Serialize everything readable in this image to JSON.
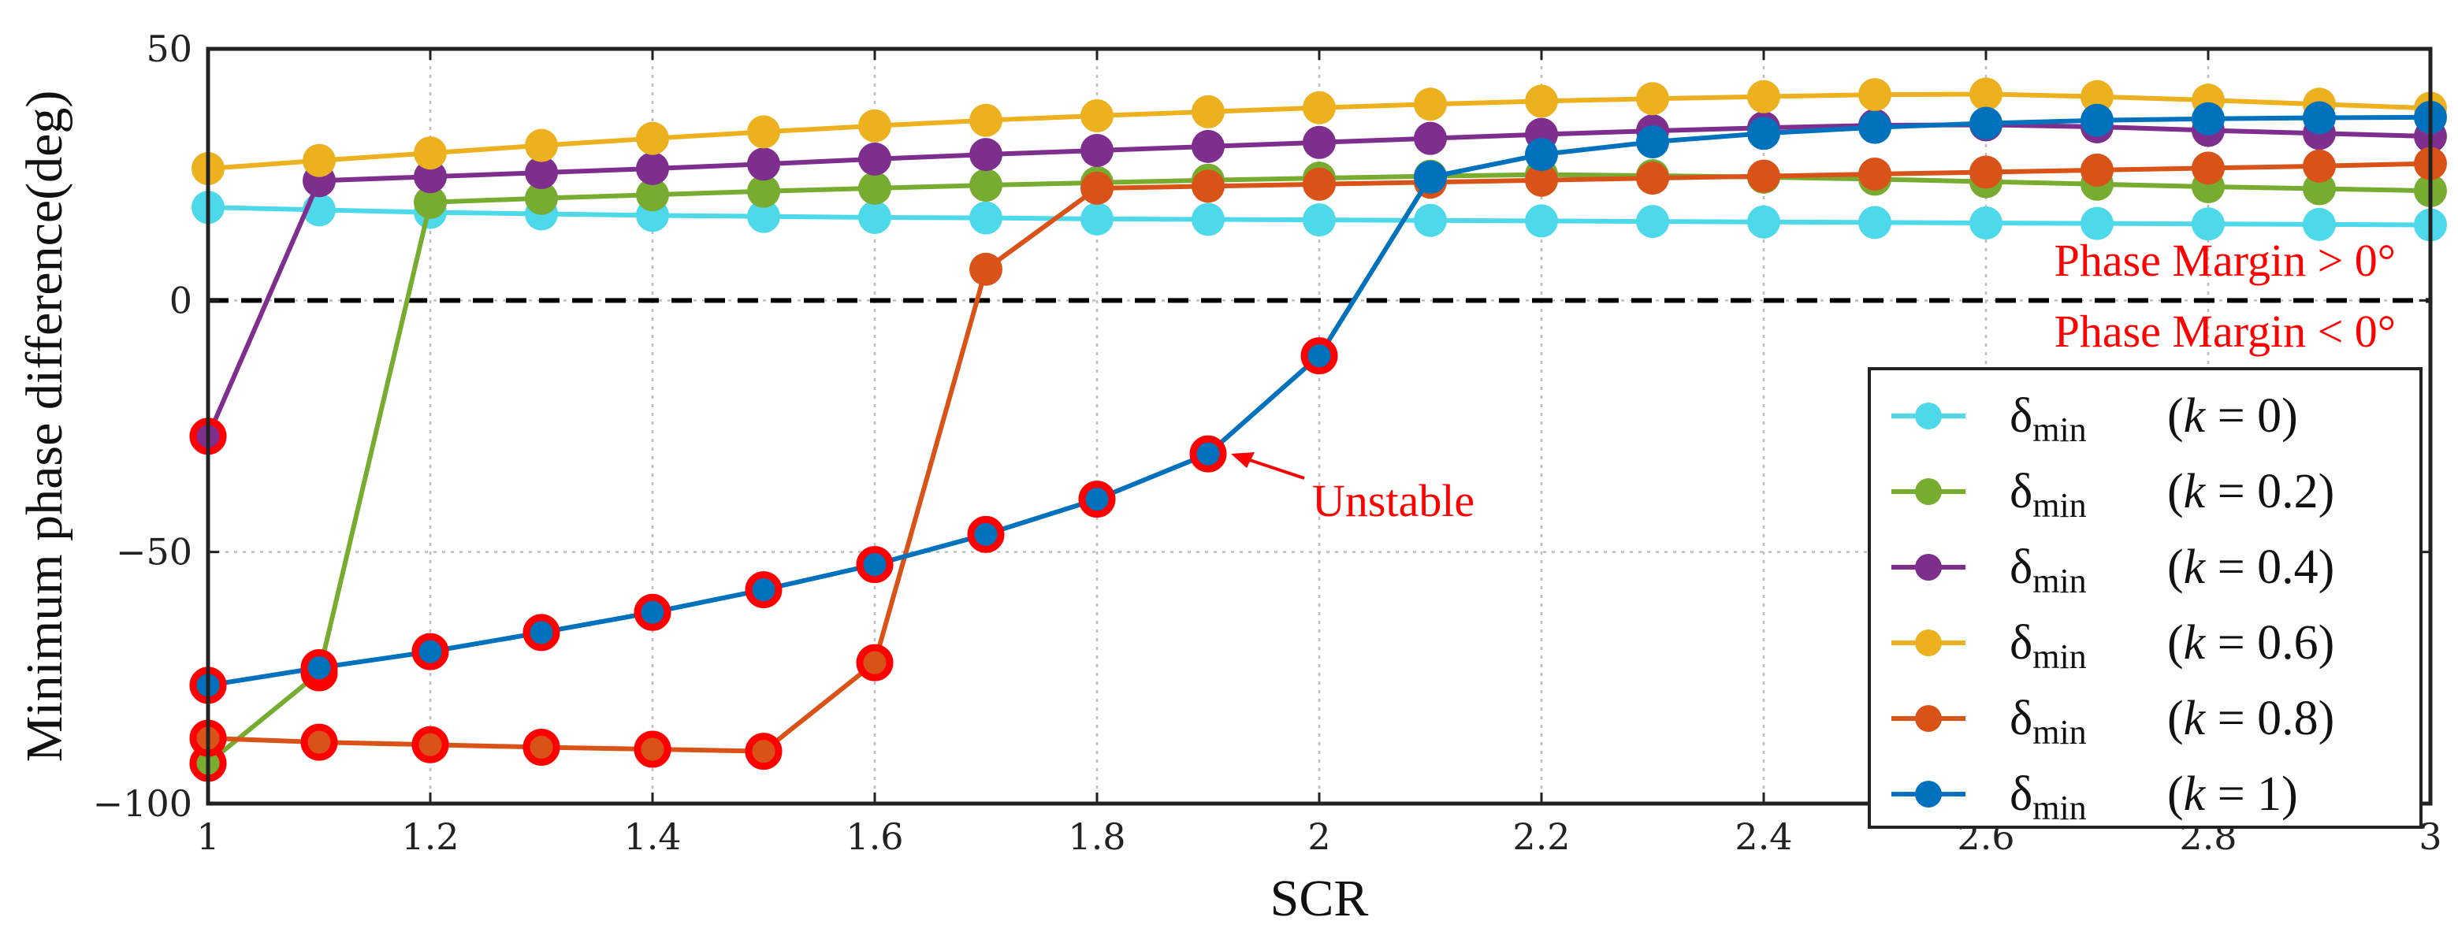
{
  "chart_data": {
    "type": "line",
    "xlabel": "SCR",
    "ylabel": "Minimum phase difference(deg)",
    "xlim": [
      1,
      3
    ],
    "ylim": [
      -100,
      50
    ],
    "x_ticks": [
      1,
      1.2,
      1.4,
      1.6,
      1.8,
      2,
      2.2,
      2.4,
      2.6,
      2.8,
      3
    ],
    "x_tick_labels": [
      "1",
      "1.2",
      "1.4",
      "1.6",
      "1.8",
      "2",
      "2.2",
      "2.4",
      "2.6",
      "2.8",
      "3"
    ],
    "y_ticks": [
      -100,
      -50,
      0,
      50
    ],
    "y_tick_labels": [
      "−100",
      "−50",
      "0",
      "50"
    ],
    "grid": true,
    "legend_position": "bottom-right",
    "x": [
      1,
      1.1,
      1.2,
      1.3,
      1.4,
      1.5,
      1.6,
      1.7,
      1.8,
      1.9,
      2,
      2.1,
      2.2,
      2.3,
      2.4,
      2.5,
      2.6,
      2.7,
      2.8,
      2.9,
      3
    ],
    "series": [
      {
        "name": "k = 0",
        "color": "#4dd9ea",
        "values": [
          18.5,
          18.0,
          17.5,
          17.2,
          16.9,
          16.7,
          16.5,
          16.4,
          16.2,
          16.1,
          16.0,
          15.9,
          15.8,
          15.7,
          15.6,
          15.5,
          15.4,
          15.3,
          15.2,
          15.1,
          15.0
        ],
        "unstable": []
      },
      {
        "name": "k = 0.2",
        "color": "#77ac30",
        "values": [
          -92,
          -74,
          19.5,
          20.3,
          21.0,
          21.7,
          22.3,
          22.9,
          23.4,
          23.9,
          24.3,
          24.7,
          25.0,
          24.8,
          24.5,
          24.1,
          23.6,
          23.1,
          22.6,
          22.2,
          21.8
        ],
        "unstable": [
          0,
          1
        ]
      },
      {
        "name": "k = 0.4",
        "color": "#7e2f8e",
        "values": [
          -27,
          23.8,
          24.6,
          25.4,
          26.2,
          27.1,
          28.1,
          29.0,
          29.8,
          30.6,
          31.4,
          32.2,
          33.0,
          33.7,
          34.3,
          34.8,
          34.9,
          34.5,
          33.8,
          33.2,
          32.6
        ],
        "unstable": [
          0
        ]
      },
      {
        "name": "k = 0.6",
        "color": "#edb120",
        "values": [
          26.2,
          27.8,
          29.3,
          30.8,
          32.2,
          33.5,
          34.7,
          35.8,
          36.7,
          37.5,
          38.3,
          39.0,
          39.6,
          40.1,
          40.5,
          40.9,
          41.0,
          40.5,
          39.8,
          39.0,
          38.2
        ],
        "unstable": []
      },
      {
        "name": "k = 0.8",
        "color": "#d95319",
        "values": [
          -87,
          -87.8,
          -88.3,
          -88.8,
          -89.2,
          -89.6,
          -72,
          6.2,
          22.3,
          22.7,
          23.1,
          23.5,
          23.9,
          24.3,
          24.7,
          25.1,
          25.5,
          25.9,
          26.3,
          26.7,
          27.2
        ],
        "unstable": [
          0,
          1,
          2,
          3,
          4,
          5,
          6
        ]
      },
      {
        "name": "k = 1",
        "color": "#0072bd",
        "values": [
          -76.5,
          -73.0,
          -69.8,
          -66.0,
          -62.0,
          -57.5,
          -52.5,
          -46.5,
          -39.5,
          -30.5,
          -11.0,
          24.5,
          29.0,
          31.5,
          33.2,
          34.4,
          35.2,
          35.8,
          36.1,
          36.3,
          36.4
        ],
        "unstable": [
          0,
          1,
          2,
          3,
          4,
          5,
          6,
          7,
          8,
          9,
          10
        ]
      }
    ],
    "reference_line": {
      "y": 0,
      "style": "dashed"
    },
    "annotations": {
      "above": "Phase Margin > 0°",
      "below": "Phase Margin < 0°",
      "unstable": "Unstable"
    },
    "legend_symbol": "δ",
    "legend_subscript": "min",
    "legend_var": "k",
    "unstable_edge_color": "#ff0000"
  }
}
